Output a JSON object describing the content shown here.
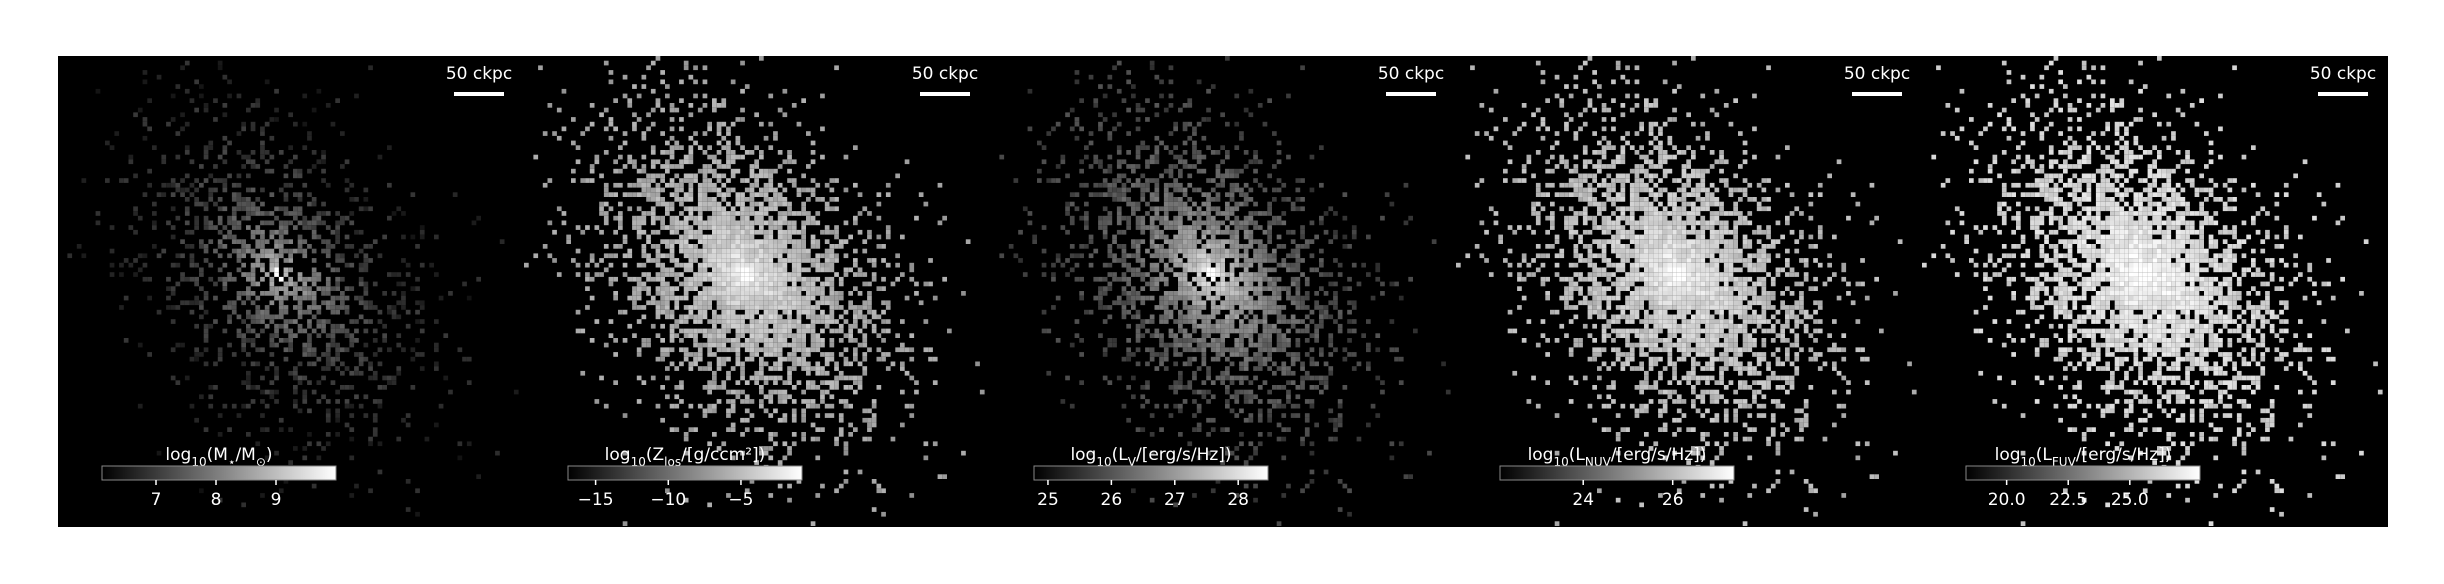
{
  "panels": [
    {
      "scale_bar": "50 ckpc",
      "colorbar": {
        "label": [
          "log",
          "10",
          "(M",
          "⋆",
          "/M",
          "⊙",
          ")"
        ],
        "lim": [
          6.1,
          10.0
        ],
        "ticks": [
          7,
          8,
          9
        ]
      }
    },
    {
      "scale_bar": "50 ckpc",
      "colorbar": {
        "label": [
          "log",
          "10",
          "(Z",
          "los",
          "/[g/ccm²])"
        ],
        "lim": [
          -16.9,
          -0.8
        ],
        "ticks": [
          {
            "value": -15,
            "label": "−15"
          },
          {
            "value": -10,
            "label": "−10"
          },
          {
            "value": -5,
            "label": "−5"
          }
        ]
      }
    },
    {
      "scale_bar": "50 ckpc",
      "colorbar": {
        "label": [
          "log",
          "10",
          "(L",
          "V",
          "/[erg/s/Hz])"
        ],
        "lim": [
          24.78,
          28.47
        ],
        "ticks": [
          25,
          26,
          27,
          28
        ]
      }
    },
    {
      "scale_bar": "50 ckpc",
      "colorbar": {
        "label": [
          "log",
          "10",
          "(L",
          "NUV",
          "/[erg/s/Hz])"
        ],
        "lim": [
          22.14,
          27.37
        ],
        "ticks": [
          24,
          26
        ]
      }
    },
    {
      "scale_bar": "50 ckpc",
      "colorbar": {
        "label": [
          "log",
          "10",
          "(L",
          "FUV",
          "/[erg/s/Hz])"
        ],
        "lim": [
          18.35,
          27.85
        ],
        "ticks": [
          {
            "value": 20,
            "label": "20.0"
          },
          {
            "value": 22.5,
            "label": "22.5"
          },
          {
            "value": 25,
            "label": "25.0"
          }
        ]
      }
    }
  ]
}
